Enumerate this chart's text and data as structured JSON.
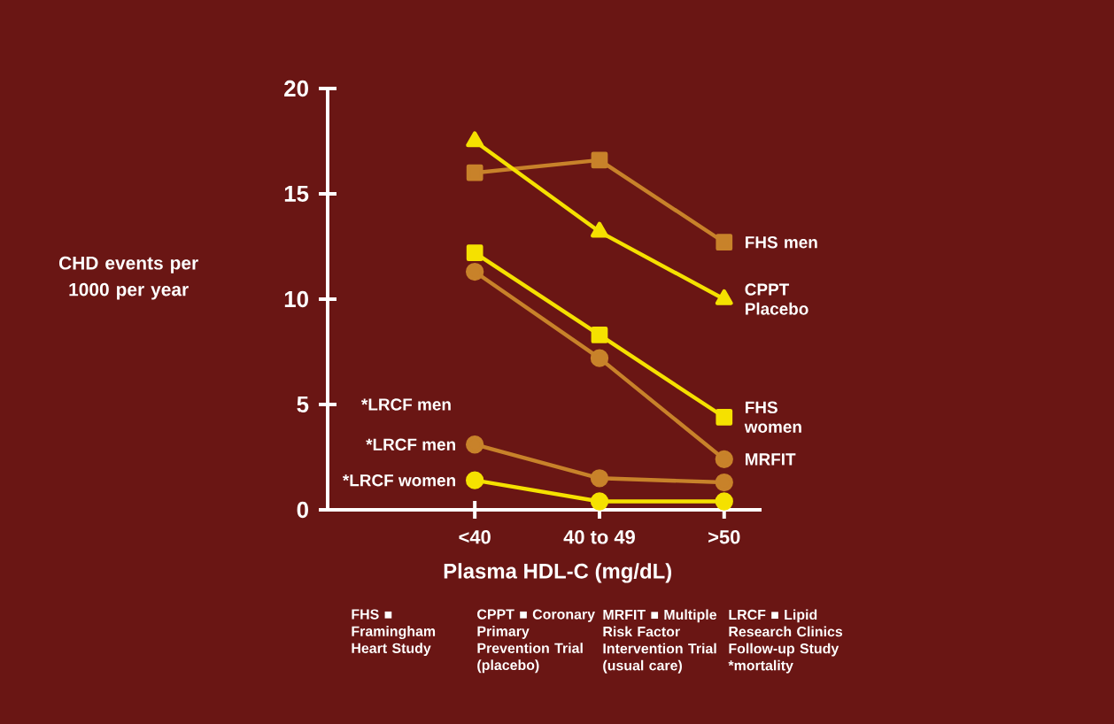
{
  "chart_data": {
    "type": "line",
    "xlabel": "Plasma HDL-C (mg/dL)",
    "ylabel": "CHD events per 1000 per year",
    "categories": [
      "<40",
      "40 to 49",
      ">50"
    ],
    "ylim": [
      0,
      20
    ],
    "yticks": [
      0,
      5,
      10,
      15,
      20
    ],
    "grid": false,
    "legend": false,
    "series": [
      {
        "name": "FHS men",
        "color": "#c8822a",
        "marker": "square",
        "values": [
          16.0,
          16.6,
          12.7
        ]
      },
      {
        "name": "CPPT Placebo",
        "color": "#f5e100",
        "marker": "triangle",
        "values": [
          17.5,
          13.2,
          10.0
        ]
      },
      {
        "name": "FHS women",
        "color": "#f5e100",
        "marker": "square",
        "values": [
          12.2,
          8.3,
          4.4
        ]
      },
      {
        "name": "MRFIT",
        "color": "#c8822a",
        "marker": "circle",
        "values": [
          11.3,
          7.2,
          2.4
        ]
      },
      {
        "name": "*LRCF men",
        "color": "#c8822a",
        "marker": "circle",
        "values": [
          3.1,
          1.5,
          1.3
        ]
      },
      {
        "name": "*LRCF women",
        "color": "#f5e100",
        "marker": "circle",
        "values": [
          1.4,
          0.4,
          0.4
        ]
      }
    ],
    "annotations": [
      "*LRCF men",
      "FHS ■ Framingham Heart Study",
      "CPPT ■ Coronary Primary Prevention Trial (placebo)",
      "MRFIT ■ Multiple Risk Factor Intervention Trial (usual care)",
      "LRCF ■ Lipid Research Clinics Follow-up Study *mortality"
    ]
  }
}
